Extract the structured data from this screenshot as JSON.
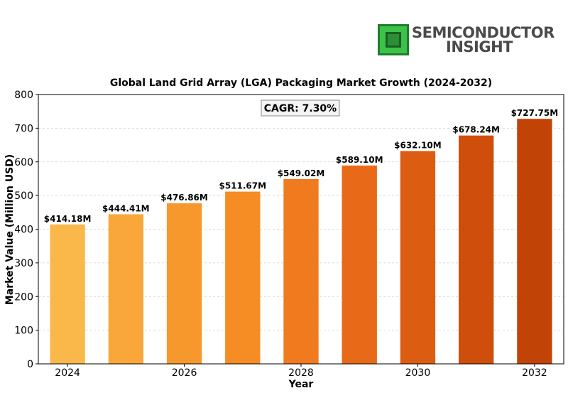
{
  "logo": {
    "line1": "SEMICONDUCTOR",
    "line2": "INSIGHT",
    "chip_color": "#2fa33a"
  },
  "chart_data": {
    "type": "bar",
    "title": "Global Land Grid Array (LGA) Packaging Market Growth (2024-2032)",
    "xlabel": "Year",
    "ylabel": "Market Value (Million USD)",
    "categories": [
      "2024",
      "2025",
      "2026",
      "2027",
      "2028",
      "2029",
      "2030",
      "2031",
      "2032"
    ],
    "values": [
      414.18,
      444.41,
      476.86,
      511.67,
      549.02,
      589.1,
      632.1,
      678.24,
      727.75
    ],
    "data_labels": [
      "$414.18M",
      "$444.41M",
      "$476.86M",
      "$511.67M",
      "$549.02M",
      "$589.10M",
      "$632.10M",
      "$678.24M",
      "$727.75M"
    ],
    "x_tick_labels": [
      "2024",
      "",
      "2026",
      "",
      "2028",
      "",
      "2030",
      "",
      "2032"
    ],
    "ylim": [
      0,
      800
    ],
    "y_ticks": [
      0,
      100,
      200,
      300,
      400,
      500,
      600,
      700,
      800
    ],
    "grid": "horizontal-dashed",
    "annotation": "CAGR: 7.30%",
    "bar_colors": [
      "#fbb84a",
      "#f9a73a",
      "#f7982c",
      "#f58c24",
      "#f07a1e",
      "#e86a18",
      "#dc5c12",
      "#cf4e0c",
      "#c24306"
    ]
  }
}
